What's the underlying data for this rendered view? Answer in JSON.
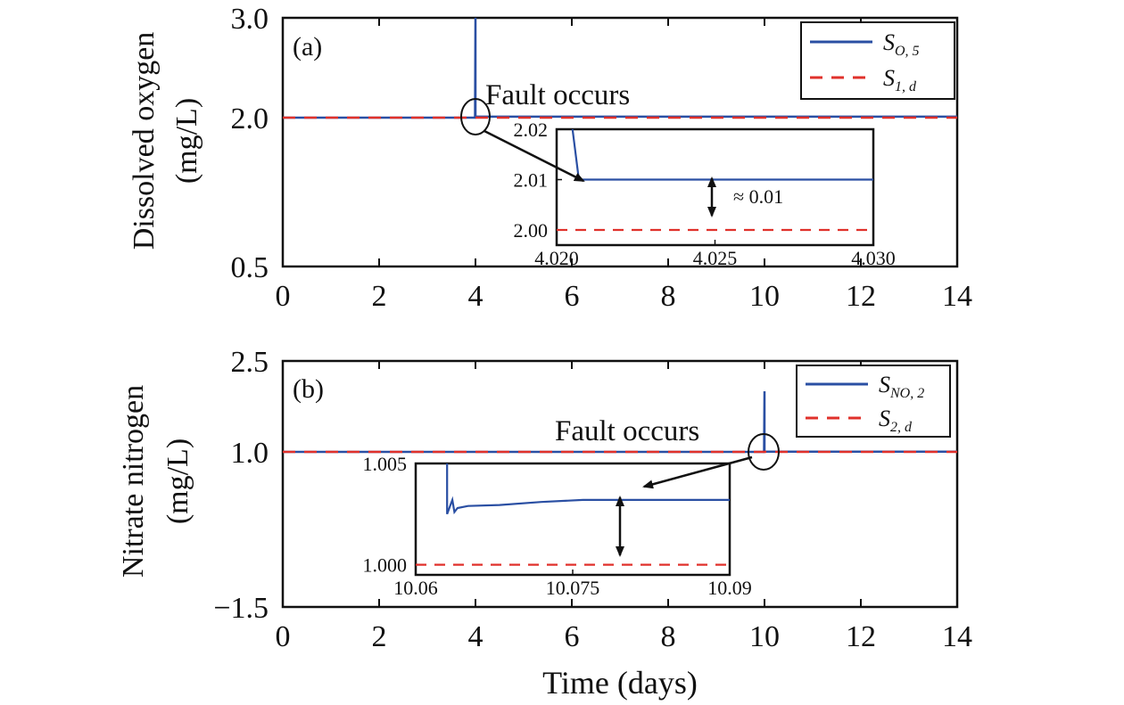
{
  "chart_data": [
    {
      "type": "line",
      "panel_label": "(a)",
      "ylabel_line1": "Dissolved oxygen",
      "ylabel_line2": "(mg/L)",
      "xlabel": "",
      "xlim": [
        0,
        14
      ],
      "ylim": [
        0.5,
        3.0
      ],
      "x_ticks": [
        "0",
        "2",
        "4",
        "6",
        "8",
        "10",
        "12",
        "14"
      ],
      "y_ticks": [
        "0.5",
        "2.0",
        "3.0"
      ],
      "y_tick_values": [
        0.5,
        2.0,
        3.0
      ],
      "legend_position": "top-right",
      "series": [
        {
          "name": "S",
          "name_sub": "O, 5",
          "style": "solid",
          "color": "#2a4fa3",
          "x": [
            0,
            3.99,
            4.0,
            4.0,
            4.01,
            14
          ],
          "y": [
            2.0,
            2.0,
            3.0,
            2.0,
            2.01,
            2.01
          ]
        },
        {
          "name": "S",
          "name_sub": "1, d",
          "style": "dashed",
          "color": "#e0312b",
          "x": [
            0,
            14
          ],
          "y": [
            2.0,
            2.0
          ]
        }
      ],
      "annotation": "Fault occurs",
      "inset": {
        "xlim": [
          4.02,
          4.03
        ],
        "ylim": [
          1.997,
          2.02
        ],
        "x_ticks": [
          "4.020",
          "4.025",
          "4.030"
        ],
        "x_tick_values": [
          4.02,
          4.025,
          4.03
        ],
        "y_ticks": [
          "2.00",
          "2.01",
          "2.02"
        ],
        "y_tick_values": [
          2.0,
          2.01,
          2.02
        ],
        "series": [
          {
            "color": "#2a4fa3",
            "style": "solid",
            "x": [
              4.0205,
              4.0207,
              4.03
            ],
            "y": [
              2.02,
              2.01,
              2.01
            ]
          },
          {
            "color": "#e0312b",
            "style": "dashed",
            "x": [
              4.02,
              4.03
            ],
            "y": [
              2.0,
              2.0
            ]
          }
        ],
        "note": "≈ 0.01"
      }
    },
    {
      "type": "line",
      "panel_label": "(b)",
      "ylabel_line1": "Nitrate nitrogen",
      "ylabel_line2": "(mg/L)",
      "xlabel": "Time (days)",
      "xlim": [
        0,
        14
      ],
      "ylim": [
        -1.5,
        2.5
      ],
      "x_ticks": [
        "0",
        "2",
        "4",
        "6",
        "8",
        "10",
        "12",
        "14"
      ],
      "y_ticks": [
        "−1.5",
        "1.0",
        "2.5"
      ],
      "y_tick_values": [
        -1.5,
        1.0,
        2.5
      ],
      "legend_position": "top-right",
      "series": [
        {
          "name": "S",
          "name_sub": "NO, 2",
          "style": "solid",
          "color": "#2a4fa3",
          "x": [
            0,
            9.99,
            10.0,
            10.0,
            10.02,
            14
          ],
          "y": [
            1.0,
            1.0,
            2.0,
            1.0,
            1.003,
            1.003
          ]
        },
        {
          "name": "S",
          "name_sub": "2, d",
          "style": "dashed",
          "color": "#e0312b",
          "x": [
            0,
            14
          ],
          "y": [
            1.0,
            1.0
          ]
        }
      ],
      "annotation": "Fault occurs",
      "inset": {
        "xlim": [
          10.06,
          10.09
        ],
        "ylim": [
          0.9995,
          1.005
        ],
        "x_ticks": [
          "10.06",
          "10.075",
          "10.09"
        ],
        "x_tick_values": [
          10.06,
          10.075,
          10.09
        ],
        "y_ticks": [
          "1.000",
          "1.005"
        ],
        "y_tick_values": [
          1.0,
          1.005
        ],
        "series": [
          {
            "color": "#2a4fa3",
            "style": "solid",
            "x": [
              10.063,
              10.063,
              10.0635,
              10.0637,
              10.064,
              10.065,
              10.068,
              10.072,
              10.076,
              10.08,
              10.09
            ],
            "y": [
              1.005,
              1.0025,
              1.0032,
              1.0026,
              1.0028,
              1.0029,
              1.00295,
              1.0031,
              1.0032,
              1.0032,
              1.0032
            ]
          },
          {
            "color": "#e0312b",
            "style": "dashed",
            "x": [
              10.06,
              10.09
            ],
            "y": [
              1.0,
              1.0
            ]
          }
        ],
        "note": ""
      }
    }
  ]
}
